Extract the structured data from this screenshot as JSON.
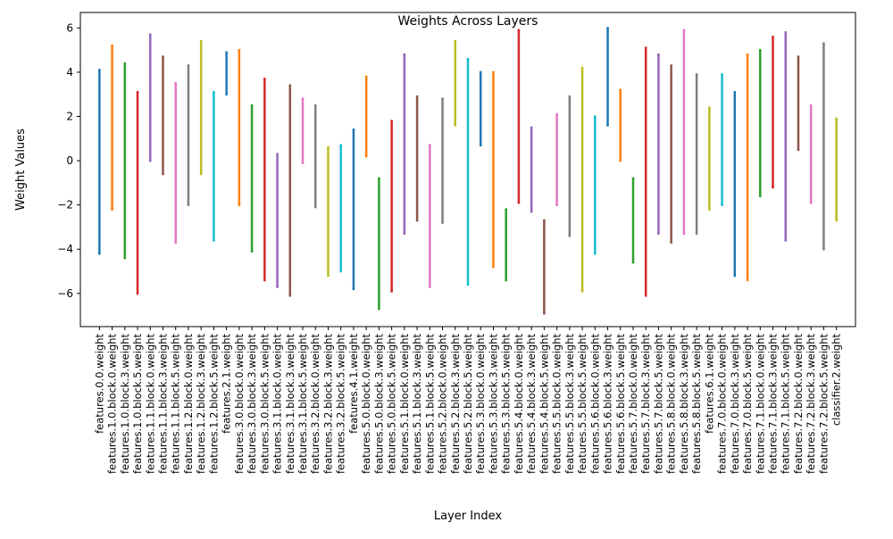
{
  "chart_data": {
    "type": "scatter",
    "title": "Weights Across Layers",
    "xlabel": "Layer Index",
    "ylabel": "Weight Values",
    "ylim": [
      -7.5,
      6.7
    ],
    "yticks": [
      -6,
      -4,
      -2,
      0,
      2,
      4,
      6
    ],
    "grid": false,
    "legend": "none",
    "palette": [
      "#1f77b4",
      "#ff7f0e",
      "#2ca02c",
      "#d62728",
      "#9467bd",
      "#8c564b",
      "#e377c2",
      "#7f7f7f",
      "#bcbd22",
      "#17becf"
    ],
    "categories": [
      "features.0.0.weight",
      "features.1.0.block.0.weight",
      "features.1.0.block.3.weight",
      "features.1.0.block.5.weight",
      "features.1.1.block.0.weight",
      "features.1.1.block.3.weight",
      "features.1.1.block.5.weight",
      "features.1.2.block.0.weight",
      "features.1.2.block.3.weight",
      "features.1.2.block.5.weight",
      "features.2.1.weight",
      "features.3.0.block.0.weight",
      "features.3.0.block.3.weight",
      "features.3.0.block.5.weight",
      "features.3.1.block.0.weight",
      "features.3.1.block.3.weight",
      "features.3.1.block.5.weight",
      "features.3.2.block.0.weight",
      "features.3.2.block.3.weight",
      "features.3.2.block.5.weight",
      "features.4.1.weight",
      "features.5.0.block.0.weight",
      "features.5.0.block.3.weight",
      "features.5.0.block.5.weight",
      "features.5.1.block.0.weight",
      "features.5.1.block.3.weight",
      "features.5.1.block.5.weight",
      "features.5.2.block.0.weight",
      "features.5.2.block.3.weight",
      "features.5.2.block.5.weight",
      "features.5.3.block.0.weight",
      "features.5.3.block.3.weight",
      "features.5.3.block.5.weight",
      "features.5.4.block.0.weight",
      "features.5.4.block.3.weight",
      "features.5.4.block.5.weight",
      "features.5.5.block.0.weight",
      "features.5.5.block.3.weight",
      "features.5.5.block.5.weight",
      "features.5.6.block.0.weight",
      "features.5.6.block.3.weight",
      "features.5.6.block.5.weight",
      "features.5.7.block.0.weight",
      "features.5.7.block.3.weight",
      "features.5.7.block.5.weight",
      "features.5.8.block.0.weight",
      "features.5.8.block.3.weight",
      "features.5.8.block.5.weight",
      "features.6.1.weight",
      "features.7.0.block.0.weight",
      "features.7.0.block.3.weight",
      "features.7.0.block.5.weight",
      "features.7.1.block.0.weight",
      "features.7.1.block.3.weight",
      "features.7.1.block.5.weight",
      "features.7.2.block.0.weight",
      "features.7.2.block.3.weight",
      "features.7.2.block.5.weight",
      "classifier.2.weight"
    ],
    "ranges": [
      [
        -4.2,
        4.1
      ],
      [
        -2.2,
        5.2
      ],
      [
        -4.4,
        4.4
      ],
      [
        -6.0,
        3.1
      ],
      [
        0.0,
        5.7
      ],
      [
        -0.6,
        4.7
      ],
      [
        -3.7,
        3.5
      ],
      [
        -2.0,
        4.3
      ],
      [
        -0.6,
        5.4
      ],
      [
        -3.6,
        3.1
      ],
      [
        3.0,
        4.9
      ],
      [
        -2.0,
        5.0
      ],
      [
        -4.1,
        2.5
      ],
      [
        -5.4,
        3.7
      ],
      [
        -5.7,
        0.3
      ],
      [
        -6.1,
        3.4
      ],
      [
        -0.1,
        2.8
      ],
      [
        -2.1,
        2.5
      ],
      [
        -5.2,
        0.6
      ],
      [
        -5.0,
        0.7
      ],
      [
        -5.8,
        1.4
      ],
      [
        0.2,
        3.8
      ],
      [
        -6.7,
        -0.8
      ],
      [
        -5.9,
        1.8
      ],
      [
        -3.3,
        4.8
      ],
      [
        -2.7,
        2.9
      ],
      [
        -5.7,
        0.7
      ],
      [
        -2.8,
        2.8
      ],
      [
        1.6,
        5.4
      ],
      [
        -5.6,
        4.6
      ],
      [
        0.7,
        4.0
      ],
      [
        -4.8,
        4.0
      ],
      [
        -5.4,
        -2.2
      ],
      [
        -1.9,
        5.9
      ],
      [
        -2.3,
        1.5
      ],
      [
        -6.9,
        -2.7
      ],
      [
        -2.0,
        2.1
      ],
      [
        -3.4,
        2.9
      ],
      [
        -5.9,
        4.2
      ],
      [
        -4.2,
        2.0
      ],
      [
        1.6,
        6.0
      ],
      [
        0.0,
        3.2
      ],
      [
        -4.6,
        -0.8
      ],
      [
        -6.1,
        5.1
      ],
      [
        -3.3,
        4.8
      ],
      [
        -3.7,
        4.3
      ],
      [
        -3.3,
        5.9
      ],
      [
        -3.3,
        3.9
      ],
      [
        -2.2,
        2.4
      ],
      [
        -2.0,
        3.9
      ],
      [
        -5.2,
        3.1
      ],
      [
        -5.4,
        4.8
      ],
      [
        -1.6,
        5.0
      ],
      [
        -1.2,
        5.6
      ],
      [
        -3.6,
        5.8
      ],
      [
        0.5,
        4.7
      ],
      [
        -1.9,
        2.5
      ],
      [
        -4.0,
        5.3
      ],
      [
        -2.7,
        1.9
      ]
    ]
  }
}
